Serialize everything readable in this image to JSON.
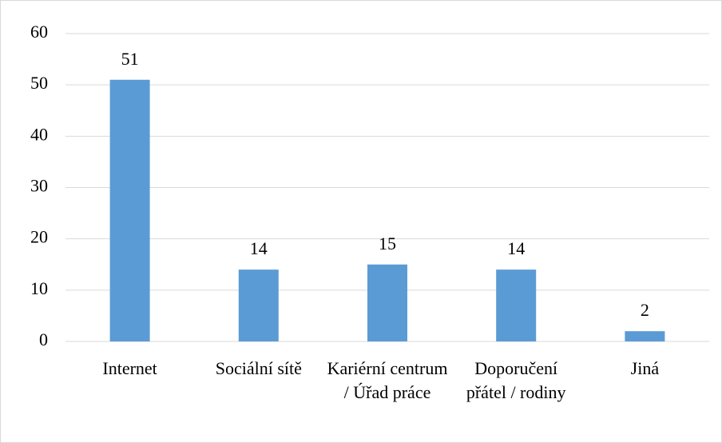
{
  "chart_data": {
    "type": "bar",
    "categories": [
      "Internet",
      "Sociální sítě",
      "Kariérní centrum / Úřad práce",
      "Doporučení přátel / rodiny",
      "Jiná"
    ],
    "values": [
      51,
      14,
      15,
      14,
      2
    ],
    "color": "#5b9bd5",
    "ylim": [
      0,
      60
    ],
    "yticks": [
      0,
      10,
      20,
      30,
      40,
      50,
      60
    ],
    "grid": true
  }
}
